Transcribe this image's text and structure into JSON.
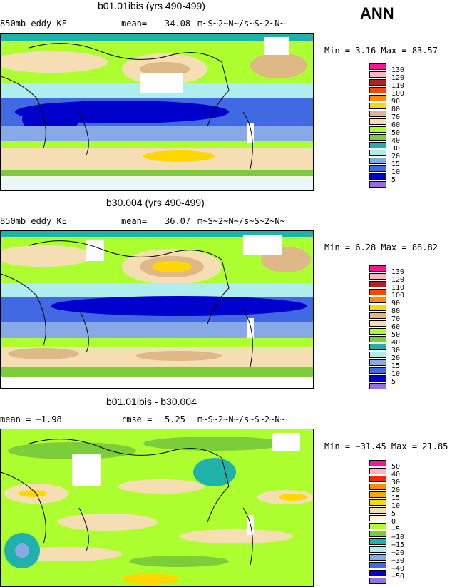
{
  "header": {
    "season": "ANN"
  },
  "panels": [
    {
      "title": "b01.01ibis (yrs 490-499)",
      "field": "850mb eddy KE",
      "stat_label": "mean=",
      "stat_value": "34.08",
      "units": "m~S~2~N~/s~S~2~N~",
      "minmax": "Min =   3.16 Max =  83.57"
    },
    {
      "title": "b30.004 (yrs 490-499)",
      "field": "850mb eddy KE",
      "stat_label": "mean=",
      "stat_value": "36.07",
      "units": "m~S~2~N~/s~S~2~N~",
      "minmax": "Min =   6.28 Max =  88.82"
    },
    {
      "title": "b01.01ibis - b30.004",
      "field": "mean =  −1.98",
      "stat_label": "rmse =",
      "stat_value": "5.25",
      "units": "m~S~2~N~/s~S~2~N~",
      "minmax": "Min = −31.45 Max =  21.85"
    }
  ],
  "legends": [
    {
      "labels": [
        "130",
        "120",
        "110",
        "100",
        "90",
        "80",
        "70",
        "60",
        "50",
        "40",
        "30",
        "20",
        "15",
        "10",
        "5"
      ],
      "colors": [
        "#ff1493",
        "#ffb6c1",
        "#b22222",
        "#ff4500",
        "#ff8c00",
        "#ffd700",
        "#deb887",
        "#f5deb3",
        "#adff2f",
        "#7ccd3a",
        "#20b2aa",
        "#afeeee",
        "#87a9e6",
        "#4169e1",
        "#0000cd",
        "#9370db"
      ]
    },
    {
      "labels": [
        "130",
        "120",
        "110",
        "100",
        "90",
        "80",
        "70",
        "60",
        "50",
        "40",
        "30",
        "20",
        "15",
        "10",
        "5"
      ],
      "colors": [
        "#ff1493",
        "#ffb6c1",
        "#b22222",
        "#ff4500",
        "#ff8c00",
        "#ffd700",
        "#deb887",
        "#f5deb3",
        "#adff2f",
        "#7ccd3a",
        "#20b2aa",
        "#afeeee",
        "#87a9e6",
        "#4169e1",
        "#0000cd",
        "#9370db"
      ]
    },
    {
      "labels": [
        "50",
        "40",
        "30",
        "20",
        "15",
        "10",
        "5",
        "0",
        "−5",
        "−10",
        "−15",
        "−20",
        "−30",
        "−40",
        "−50"
      ],
      "colors": [
        "#ff1493",
        "#ffb6c1",
        "#ff2400",
        "#ff8c00",
        "#ffa500",
        "#ffd700",
        "#f5deb3",
        "#fff8dc",
        "#adff2f",
        "#7ccd3a",
        "#20b2aa",
        "#afeeee",
        "#87a9e6",
        "#4169e1",
        "#0000cd",
        "#9370db"
      ]
    }
  ]
}
